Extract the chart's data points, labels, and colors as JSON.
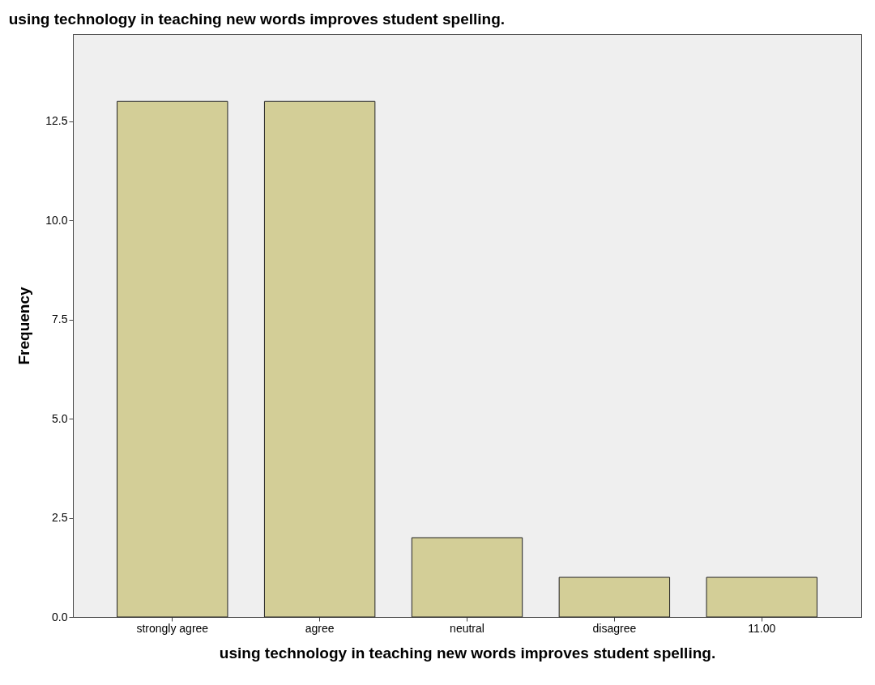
{
  "chart_data": {
    "type": "bar",
    "title": "using technology in teaching new words improves student spelling.",
    "xlabel": "using technology in teaching new words improves student spelling.",
    "ylabel": "Frequency",
    "categories": [
      "strongly agree",
      "agree",
      "neutral",
      "disagree",
      "11.00"
    ],
    "values": [
      13,
      13,
      2,
      1,
      1
    ],
    "color": "#d3ce97",
    "ylim": [
      0,
      14.7
    ],
    "yticks": [
      {
        "value": 0,
        "label": "0.0"
      },
      2.5,
      {
        "value": 5,
        "label": "5.0"
      },
      7.5,
      {
        "value": 10,
        "label": "10.0"
      },
      12.5
    ],
    "grid": false
  }
}
